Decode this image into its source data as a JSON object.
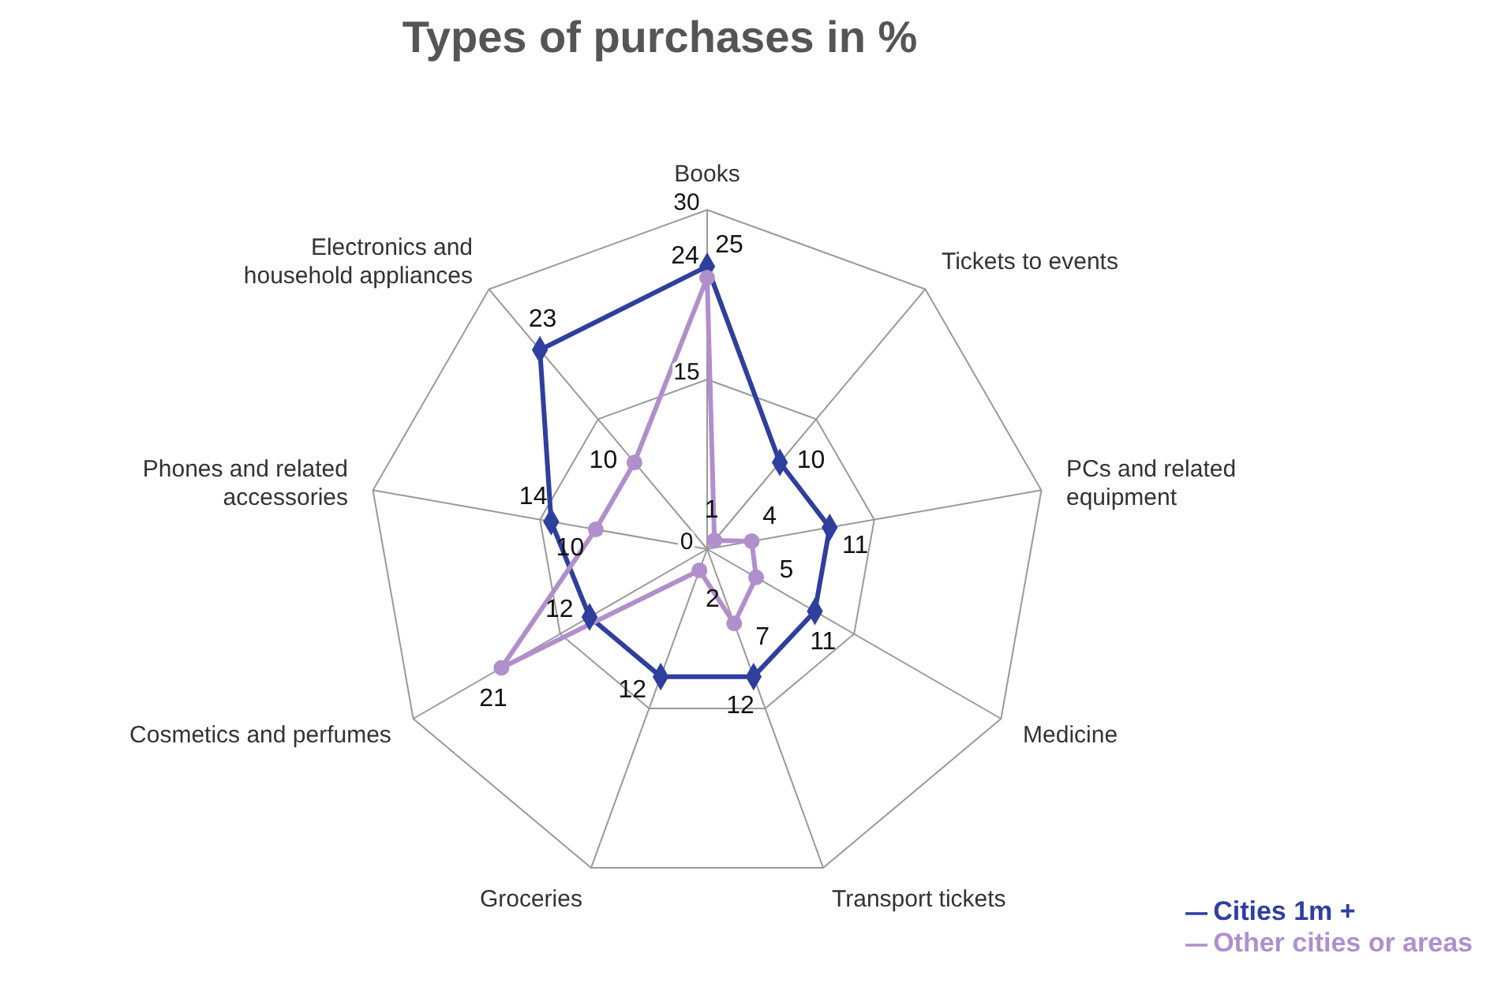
{
  "chart_data": {
    "type": "radar",
    "title": "Types of purchases in %",
    "categories": [
      "Books",
      "Tickets to events",
      "PCs and related equipment",
      "Medicine",
      "Transport tickets",
      "Groceries",
      "Cosmetics and perfumes",
      "Phones and related accessories",
      "Electronics and household appliances"
    ],
    "series": [
      {
        "name": "Cities 1m +",
        "color": "#2e3f9e",
        "marker": "diamond",
        "values": [
          25,
          10,
          11,
          11,
          12,
          12,
          12,
          14,
          23
        ]
      },
      {
        "name": "Other cities or areas",
        "color": "#b08fcc",
        "marker": "circle",
        "values": [
          24,
          1,
          4,
          5,
          7,
          2,
          21,
          10,
          10
        ]
      }
    ],
    "ylim": [
      0,
      30
    ],
    "yticks": [
      0,
      15,
      30
    ],
    "grid": true,
    "legend": "bottom right",
    "data_labels": true
  }
}
